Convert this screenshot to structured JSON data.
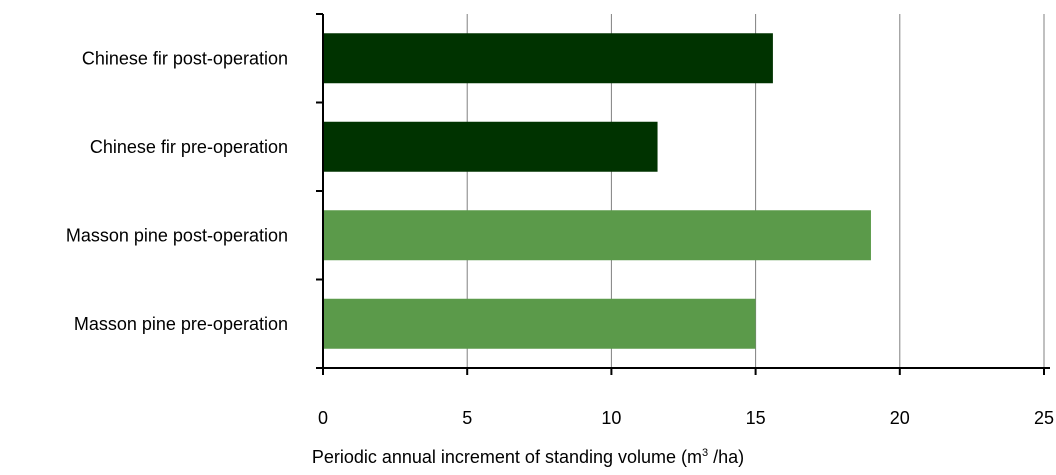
{
  "chart_data": {
    "type": "bar",
    "orientation": "horizontal",
    "categories": [
      "Chinese fir post-operation",
      "Chinese fir pre-operation",
      "Masson pine post-operation",
      "Masson pine pre-operation"
    ],
    "values": [
      15.6,
      11.6,
      19.0,
      15.0
    ],
    "bar_colors": [
      "#003300",
      "#003300",
      "#5b9a4a",
      "#5b9a4a"
    ],
    "xlim": [
      0,
      25
    ],
    "xticks": [
      "0",
      "5",
      "10",
      "15",
      "20",
      "25"
    ],
    "xlabel": {
      "prefix": "Periodic annual increment of standing volume (m",
      "superscript": "3",
      "suffix": " /ha)"
    },
    "grid": "vertical",
    "gridline_color": "#808080"
  }
}
